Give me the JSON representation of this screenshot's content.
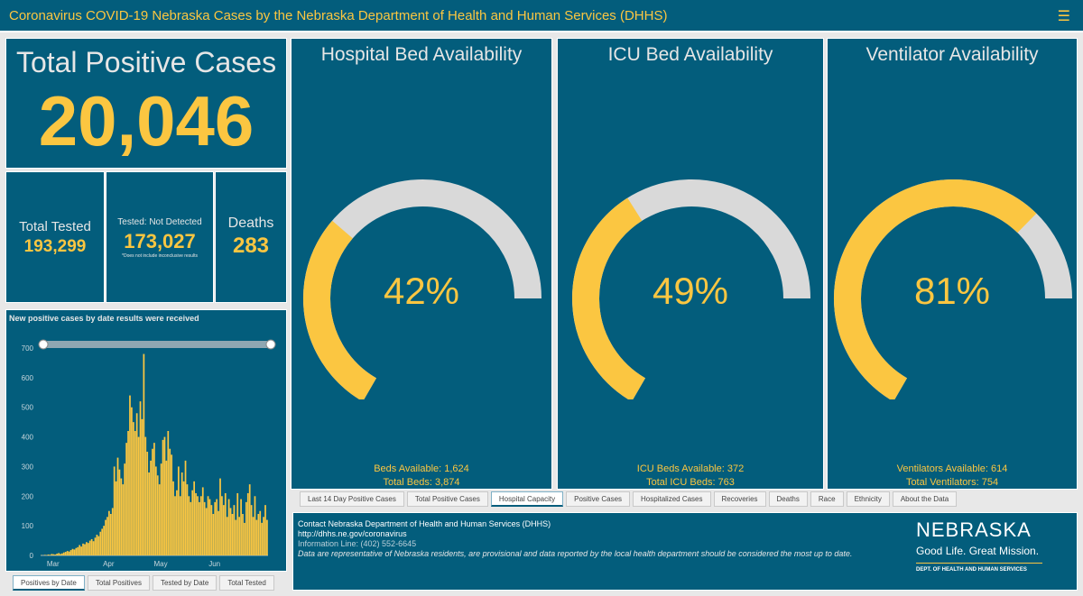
{
  "header": {
    "title": "Coronavirus COVID-19 Nebraska Cases by the Nebraska Department of Health and Human Services (DHHS)",
    "menu_icon": "hamburger-menu-icon"
  },
  "total_positive": {
    "label": "Total Positive Cases",
    "value": "20,046"
  },
  "total_tested": {
    "label": "Total Tested",
    "value": "193,299"
  },
  "not_detected": {
    "label": "Tested: Not Detected",
    "value": "173,027",
    "note": "*Does not include inconclusive results"
  },
  "deaths": {
    "label": "Deaths",
    "value": "283"
  },
  "gauges": [
    {
      "title": "Hospital Bed Availability",
      "percent_label": "42%",
      "fraction": 0.42,
      "line1": "Beds Available: 1,624",
      "line2": "Total Beds: 3,874"
    },
    {
      "title": "ICU Bed Availability",
      "percent_label": "49%",
      "fraction": 0.49,
      "line1": "ICU Beds Available: 372",
      "line2": "Total ICU Beds: 763"
    },
    {
      "title": "Ventilator Availability",
      "percent_label": "81%",
      "fraction": 0.81,
      "line1": "Ventilators Available: 614",
      "line2": "Total Ventilators: 754"
    }
  ],
  "colors": {
    "panel": "#035d7c",
    "accent": "#fbc641",
    "gauge_track": "#d9d9d9"
  },
  "main_tabs": [
    {
      "label": "Last 14 Day Positive Cases",
      "active": false
    },
    {
      "label": "Total Positive Cases",
      "active": false
    },
    {
      "label": "Hospital Capacity",
      "active": true
    },
    {
      "label": "Positive Cases",
      "active": false
    },
    {
      "label": "Hospitalized Cases",
      "active": false
    },
    {
      "label": "Recoveries",
      "active": false
    },
    {
      "label": "Deaths",
      "active": false
    },
    {
      "label": "Race",
      "active": false
    },
    {
      "label": "Ethnicity",
      "active": false
    },
    {
      "label": "About the Data",
      "active": false
    }
  ],
  "chart_tabs": [
    {
      "label": "Positives by Date",
      "active": true
    },
    {
      "label": "Total Positives",
      "active": false
    },
    {
      "label": "Tested by Date",
      "active": false
    },
    {
      "label": "Total Tested",
      "active": false
    }
  ],
  "contact": {
    "heading": "Contact Nebraska Department of Health and Human Services (DHHS)",
    "url": "http://dhhs.ne.gov/coronavirus",
    "phone": "Information Line: (402) 552-6645",
    "disclaimer": "Data are representative of Nebraska residents, are provisional and data reported by the local health department should be considered the most up to date."
  },
  "logo": {
    "name": "NEBRASKA",
    "tagline": "Good Life. Great Mission.",
    "dept": "DEPT. OF HEALTH AND HUMAN SERVICES"
  },
  "chart_data": {
    "type": "bar",
    "title": "New positive cases by date results were received",
    "ylim": [
      0,
      700
    ],
    "yticks": [
      0,
      100,
      200,
      300,
      400,
      500,
      600,
      700
    ],
    "x_ticks": [
      "Mar",
      "Apr",
      "May",
      "Jun"
    ],
    "x_tick_positions": [
      3,
      35,
      65,
      96
    ],
    "grid": false,
    "values": [
      1,
      0,
      2,
      1,
      3,
      2,
      5,
      4,
      3,
      6,
      8,
      5,
      7,
      10,
      12,
      15,
      13,
      18,
      22,
      20,
      25,
      28,
      35,
      30,
      40,
      38,
      45,
      42,
      50,
      55,
      48,
      60,
      70,
      65,
      80,
      90,
      100,
      120,
      130,
      150,
      140,
      160,
      300,
      250,
      330,
      290,
      260,
      240,
      310,
      380,
      420,
      540,
      500,
      450,
      420,
      480,
      400,
      520,
      460,
      680,
      400,
      350,
      280,
      320,
      360,
      380,
      300,
      270,
      240,
      310,
      390,
      400,
      320,
      420,
      360,
      340,
      250,
      200,
      220,
      300,
      200,
      280,
      250,
      320,
      240,
      200,
      180,
      220,
      250,
      210,
      200,
      180,
      200,
      230,
      180,
      160,
      200,
      190,
      170,
      140,
      180,
      190,
      150,
      260,
      200,
      170,
      210,
      130,
      190,
      160,
      140,
      170,
      120,
      210,
      130,
      190,
      140,
      110,
      180,
      210,
      240,
      170,
      130,
      200,
      120,
      140,
      150,
      110,
      130,
      170,
      120
    ]
  }
}
